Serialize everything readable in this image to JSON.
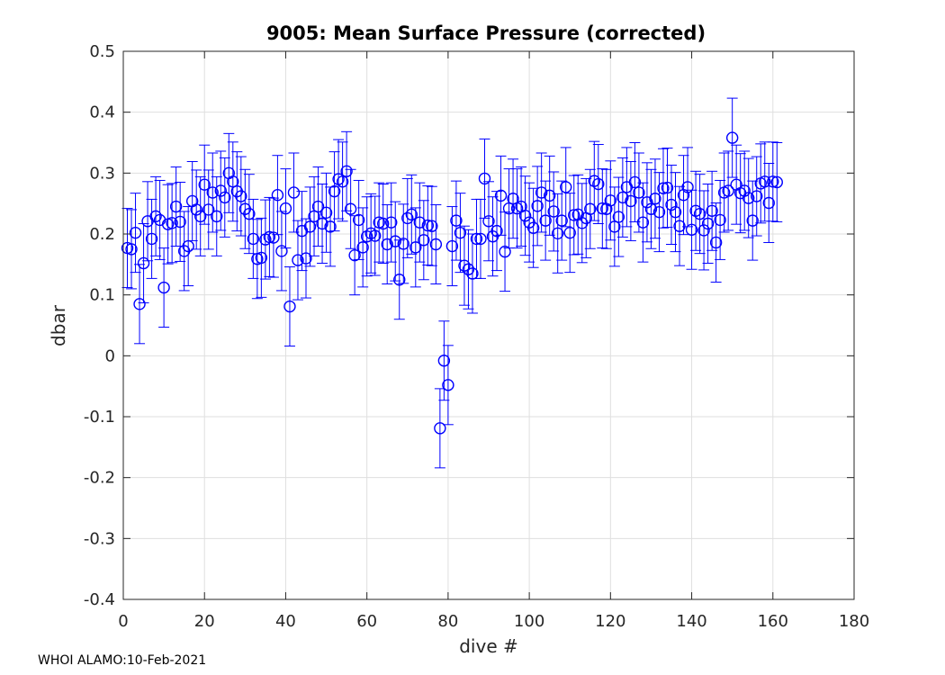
{
  "chart_data": {
    "type": "scatter",
    "title": "9005: Mean Surface Pressure (corrected)",
    "xlabel": "dive #",
    "ylabel": "dbar",
    "xlim": [
      0,
      180
    ],
    "ylim": [
      -0.4,
      0.5
    ],
    "xticks": [
      0,
      20,
      40,
      60,
      80,
      100,
      120,
      140,
      160,
      180
    ],
    "yticks": [
      -0.4,
      -0.3,
      -0.2,
      -0.1,
      0,
      0.1,
      0.2,
      0.3,
      0.4,
      0.5
    ],
    "xtick_labels": [
      "0",
      "20",
      "40",
      "60",
      "80",
      "100",
      "120",
      "140",
      "160",
      "180"
    ],
    "ytick_labels": [
      "-0.4",
      "-0.3",
      "-0.2",
      "-0.1",
      "0",
      "0.1",
      "0.2",
      "0.3",
      "0.4",
      "0.5"
    ],
    "grid": true,
    "marker": "circle",
    "series": [
      {
        "name": "mean surface pressure",
        "color": "#0000ff",
        "error_halfwidth": 0.065,
        "x": [
          1,
          2,
          3,
          4,
          5,
          6,
          7,
          8,
          9,
          10,
          11,
          12,
          13,
          14,
          15,
          16,
          17,
          18,
          19,
          20,
          21,
          22,
          23,
          24,
          25,
          26,
          27,
          28,
          29,
          30,
          31,
          32,
          33,
          34,
          35,
          36,
          37,
          38,
          39,
          40,
          41,
          42,
          43,
          44,
          45,
          46,
          47,
          48,
          49,
          50,
          51,
          52,
          53,
          54,
          55,
          56,
          57,
          58,
          59,
          60,
          61,
          62,
          63,
          64,
          65,
          66,
          67,
          68,
          69,
          70,
          71,
          72,
          73,
          74,
          75,
          76,
          77,
          78,
          79,
          80,
          81,
          82,
          83,
          84,
          85,
          86,
          87,
          88,
          89,
          90,
          91,
          92,
          93,
          94,
          95,
          96,
          97,
          98,
          99,
          100,
          101,
          102,
          103,
          104,
          105,
          106,
          107,
          108,
          109,
          110,
          111,
          112,
          113,
          114,
          115,
          116,
          117,
          118,
          119,
          120,
          121,
          122,
          123,
          124,
          125,
          126,
          127,
          128,
          129,
          130,
          131,
          132,
          133,
          134,
          135,
          136,
          137,
          138,
          139,
          140,
          141,
          142,
          143,
          144,
          145,
          146,
          147,
          148,
          149,
          150,
          151,
          152,
          153,
          154,
          155,
          156,
          157,
          158,
          159,
          160,
          161
        ],
        "y": [
          0.177,
          0.175,
          0.202,
          0.085,
          0.152,
          0.221,
          0.192,
          0.229,
          0.223,
          0.112,
          0.216,
          0.218,
          0.245,
          0.22,
          0.172,
          0.18,
          0.254,
          0.24,
          0.229,
          0.281,
          0.24,
          0.268,
          0.229,
          0.271,
          0.26,
          0.3,
          0.286,
          0.27,
          0.262,
          0.241,
          0.233,
          0.192,
          0.159,
          0.161,
          0.191,
          0.195,
          0.194,
          0.264,
          0.172,
          0.242,
          0.081,
          0.268,
          0.157,
          0.205,
          0.16,
          0.212,
          0.229,
          0.245,
          0.217,
          0.235,
          0.212,
          0.27,
          0.29,
          0.286,
          0.303,
          0.241,
          0.165,
          0.223,
          0.178,
          0.196,
          0.201,
          0.197,
          0.219,
          0.217,
          0.183,
          0.219,
          0.188,
          0.125,
          0.184,
          0.226,
          0.232,
          0.178,
          0.219,
          0.19,
          0.214,
          0.213,
          0.183,
          -0.119,
          -0.008,
          -0.048,
          0.18,
          0.222,
          0.202,
          0.148,
          0.142,
          0.135,
          0.192,
          0.192,
          0.291,
          0.221,
          0.196,
          0.205,
          0.263,
          0.171,
          0.242,
          0.258,
          0.242,
          0.245,
          0.23,
          0.219,
          0.21,
          0.246,
          0.268,
          0.222,
          0.263,
          0.237,
          0.201,
          0.222,
          0.277,
          0.202,
          0.231,
          0.232,
          0.218,
          0.226,
          0.241,
          0.287,
          0.282,
          0.242,
          0.241,
          0.255,
          0.212,
          0.228,
          0.26,
          0.277,
          0.254,
          0.285,
          0.268,
          0.219,
          0.252,
          0.241,
          0.258,
          0.236,
          0.275,
          0.276,
          0.248,
          0.236,
          0.213,
          0.264,
          0.277,
          0.207,
          0.238,
          0.233,
          0.206,
          0.217,
          0.238,
          0.186,
          0.223,
          0.268,
          0.271,
          0.358,
          0.281,
          0.267,
          0.271,
          0.259,
          0.222,
          0.262,
          0.283,
          0.286,
          0.251,
          0.286,
          0.285
        ]
      }
    ]
  },
  "footer": {
    "text": "WHOI ALAMO:10-Feb-2021"
  }
}
